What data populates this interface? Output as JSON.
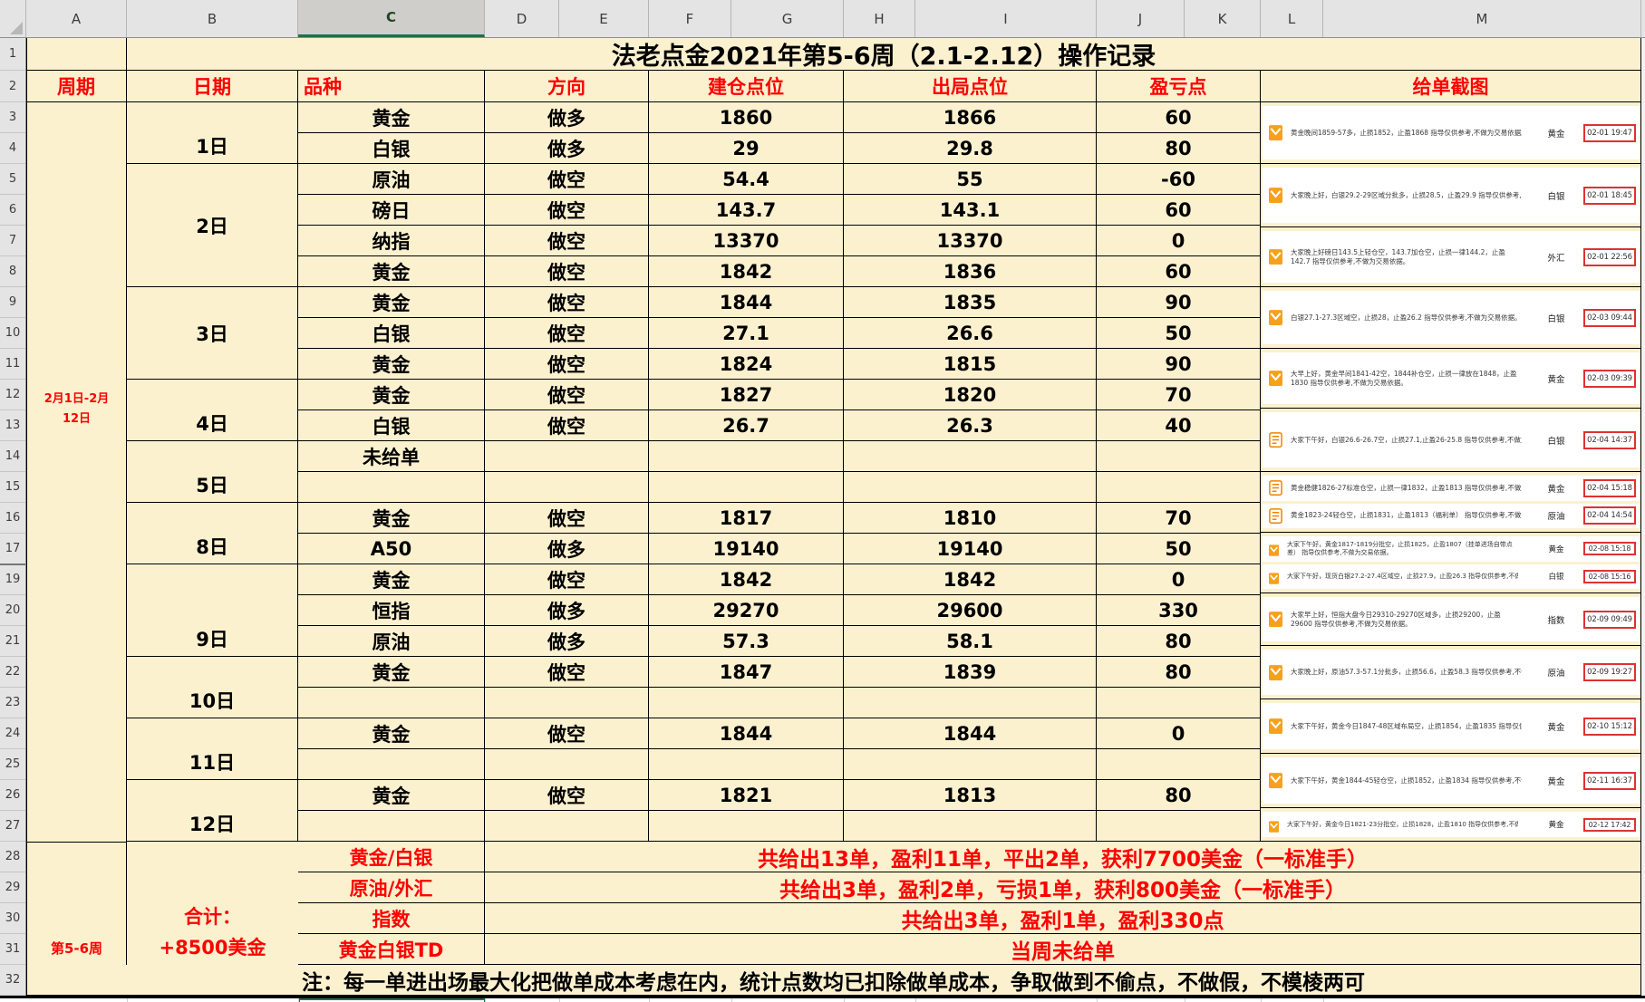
{
  "grid": {
    "column_letters": [
      "A",
      "B",
      "C",
      "D",
      "E",
      "F",
      "G",
      "H",
      "I",
      "J",
      "K",
      "L",
      "M"
    ],
    "selected_column_letter": "C",
    "row_numbers": [
      1,
      2,
      3,
      4,
      5,
      6,
      7,
      8,
      9,
      10,
      11,
      12,
      13,
      14,
      15,
      16,
      17,
      19,
      20,
      21,
      22,
      23,
      24,
      25,
      26,
      27,
      28,
      29,
      30,
      31,
      32
    ],
    "title": "法老点金2021年第5-6周（2.1-2.12）操作记录",
    "headers": {
      "cycle": "周期",
      "date": "日期",
      "variety": "品种",
      "direction": "方向",
      "entry": "建仓点位",
      "exit": "出局点位",
      "pl": "盈亏点",
      "screenshot": "给单截图"
    },
    "cycle_cell": {
      "line1": "2月1日-2月",
      "line2": "12日"
    },
    "week_cell": "第5-6周",
    "total_cell": {
      "line1": "合计：",
      "line2": "+8500美金"
    },
    "note": "注：每一单进出场最大化把做单成本考虑在内，统计点数均已扣除做单成本，争取做到不偷点，不做假，不模棱两可"
  },
  "day_groups": [
    {
      "day": "1日",
      "align": "end",
      "rows": [
        {
          "variety": "黄金",
          "direction": "做多",
          "entry": "1860",
          "exit": "1866",
          "pl": "60"
        },
        {
          "variety": "白银",
          "direction": "做多",
          "entry": "29",
          "exit": "29.8",
          "pl": "80"
        }
      ]
    },
    {
      "day": "2日",
      "align": "center",
      "rows": [
        {
          "variety": "原油",
          "direction": "做空",
          "entry": "54.4",
          "exit": "55",
          "pl": "-60"
        },
        {
          "variety": "磅日",
          "direction": "做空",
          "entry": "143.7",
          "exit": "143.1",
          "pl": "60"
        },
        {
          "variety": "纳指",
          "direction": "做空",
          "entry": "13370",
          "exit": "13370",
          "pl": "0"
        },
        {
          "variety": "黄金",
          "direction": "做空",
          "entry": "1842",
          "exit": "1836",
          "pl": "60"
        }
      ]
    },
    {
      "day": "3日",
      "align": "center",
      "rows": [
        {
          "variety": "黄金",
          "direction": "做空",
          "entry": "1844",
          "exit": "1835",
          "pl": "90"
        },
        {
          "variety": "白银",
          "direction": "做空",
          "entry": "27.1",
          "exit": "26.6",
          "pl": "50"
        },
        {
          "variety": "黄金",
          "direction": "做空",
          "entry": "1824",
          "exit": "1815",
          "pl": "90"
        }
      ]
    },
    {
      "day": "4日",
      "align": "end",
      "rows": [
        {
          "variety": "黄金",
          "direction": "做空",
          "entry": "1827",
          "exit": "1820",
          "pl": "70"
        },
        {
          "variety": "白银",
          "direction": "做空",
          "entry": "26.7",
          "exit": "26.3",
          "pl": "40"
        }
      ]
    },
    {
      "day": "5日",
      "align": "end",
      "rows": [
        {
          "variety": "未给单",
          "direction": "",
          "entry": "",
          "exit": "",
          "pl": ""
        },
        {
          "variety": "",
          "direction": "",
          "entry": "",
          "exit": "",
          "pl": ""
        }
      ]
    },
    {
      "day": "8日",
      "align": "end",
      "rows": [
        {
          "variety": "黄金",
          "direction": "做空",
          "entry": "1817",
          "exit": "1810",
          "pl": "70"
        },
        {
          "variety": "A50",
          "direction": "做多",
          "entry": "19140",
          "exit": "19140",
          "pl": "50"
        }
      ]
    },
    {
      "day": "9日",
      "align": "end",
      "rows": [
        {
          "variety": "黄金",
          "direction": "做空",
          "entry": "1842",
          "exit": "1842",
          "pl": "0"
        },
        {
          "variety": "恒指",
          "direction": "做多",
          "entry": "29270",
          "exit": "29600",
          "pl": "330"
        },
        {
          "variety": "原油",
          "direction": "做多",
          "entry": "57.3",
          "exit": "58.1",
          "pl": "80"
        }
      ]
    },
    {
      "day": "10日",
      "align": "end",
      "rows": [
        {
          "variety": "黄金",
          "direction": "做空",
          "entry": "1847",
          "exit": "1839",
          "pl": "80"
        },
        {
          "variety": "",
          "direction": "",
          "entry": "",
          "exit": "",
          "pl": ""
        }
      ]
    },
    {
      "day": "11日",
      "align": "end",
      "rows": [
        {
          "variety": "黄金",
          "direction": "做空",
          "entry": "1844",
          "exit": "1844",
          "pl": "0"
        },
        {
          "variety": "",
          "direction": "",
          "entry": "",
          "exit": "",
          "pl": ""
        }
      ]
    },
    {
      "day": "12日",
      "align": "end",
      "rows": [
        {
          "variety": "黄金",
          "direction": "做空",
          "entry": "1821",
          "exit": "1813",
          "pl": "80"
        },
        {
          "variety": "",
          "direction": "",
          "entry": "",
          "exit": "",
          "pl": ""
        }
      ]
    }
  ],
  "summary_rows": [
    {
      "category": "黄金/白银",
      "result": "共给出13单，盈利11单，平出2单，获利7700美金（一标准手）"
    },
    {
      "category": "原油/外汇",
      "result": "共给出3单，盈利2单，亏损1单，获利800美金（一标准手）"
    },
    {
      "category": "指数",
      "result": "共给出3单，盈利1单，盈利330点"
    },
    {
      "category": "黄金白银TD",
      "result": "当周未给单"
    }
  ],
  "screenshots": [
    {
      "icon": "envelope",
      "small": false,
      "lines": 1,
      "text": "黄金晚间1859-57多，止损1852，止盈1868 指导仅供参考,不做为交易依据。",
      "category": "黄金",
      "time": "02-01 19:47"
    },
    {
      "icon": "envelope",
      "small": false,
      "lines": 1,
      "text": "大家晚上好，白银29.2-29区域分批多，止损28.5，止盈29.9 指导仅供参考,不做为交易依据。",
      "category": "白银",
      "time": "02-01 18:45"
    },
    {
      "icon": "envelope",
      "small": false,
      "lines": 2,
      "text": "大家晚上好磅日143.5上轻仓空，143.7加仓空，止损一律144.2，止盈142.7 指导仅供参考,不做为交易依据。",
      "category": "外汇",
      "time": "02-01 22:56"
    },
    {
      "icon": "envelope",
      "small": false,
      "lines": 1,
      "text": "白银27.1-27.3区域空，止损28，止盈26.2 指导仅供参考,不做为交易依据。",
      "category": "白银",
      "time": "02-03 09:44"
    },
    {
      "icon": "envelope",
      "small": false,
      "lines": 2,
      "text": "大早上好，黄金早间1841-42空，1844补仓空，止损一律放在1848，止盈1830 指导仅供参考,不做为交易依据。",
      "category": "黄金",
      "time": "02-03 09:39"
    },
    {
      "icon": "doc",
      "small": false,
      "lines": 1,
      "text": "大家下午好，白银26.6-26.7空，止损27.1,止盈26-25.8 指导仅供参考,不做为交易依据。",
      "category": "白银",
      "time": "02-04 14:37"
    },
    {
      "icon": "doc",
      "small": false,
      "lines": 1,
      "text": "黄金稳健1826-27标准仓空，止损一律1832，止盈1813 指导仅供参考,不做为交易依据。",
      "category": "黄金",
      "time": "02-04 15:18"
    },
    {
      "icon": "doc",
      "small": false,
      "lines": 1,
      "text": "黄金1823-24轻仓空，止损1831，止盈1813（福利单） 指导仅供参考,不做为交易依据。",
      "category": "原油",
      "time": "02-04 14:54"
    },
    {
      "icon": "envelope",
      "small": true,
      "lines": 2,
      "text": "大家下午好，黄金1817-1819分批空，止损1825，止盈1807（挂单进场自带点差） 指导仅供参考,不做为交易依据。",
      "category": "黄金",
      "time": "02-08 15:18"
    },
    {
      "icon": "envelope",
      "small": true,
      "lines": 1,
      "text": "大家下午好，现货白银27.2-27.4区域空，止损27.9，止盈26.3 指导仅供参考,不做为交易依据。",
      "category": "白银",
      "time": "02-08 15:16"
    },
    {
      "icon": "envelope",
      "small": false,
      "lines": 2,
      "text": "大家早上好，恒指大盘今日29310-29270区域多，止损29200，止盈29600 指导仅供参考,不做为交易依据。",
      "category": "指数",
      "time": "02-09 09:49"
    },
    {
      "icon": "envelope",
      "small": false,
      "lines": 1,
      "text": "大家晚上好，原油57.3-57.1分批多，止损56.6，止盈58.3 指导仅供参考,不做为交易依据。",
      "category": "原油",
      "time": "02-09 19:27"
    },
    {
      "icon": "envelope",
      "small": false,
      "lines": 1,
      "text": "大家下午好，黄金今日1847-48区域布局空，止损1854，止盈1835 指导仅供参考,不做为交易依据。",
      "category": "黄金",
      "time": "02-10 15:12"
    },
    {
      "icon": "envelope",
      "small": false,
      "lines": 1,
      "text": "大家下午好，黄金1844-45轻仓空，止损1852，止盈1834 指导仅供参考,不做为交易依据。",
      "category": "黄金",
      "time": "02-11 16:37"
    },
    {
      "icon": "envelope",
      "small": true,
      "lines": 1,
      "text": "大家下午好，黄金今日1821-23分批空，止损1828，止盈1810 指导仅供参考,不做为交易依据。",
      "category": "黄金",
      "time": "02-12 17:42"
    }
  ],
  "colors": {
    "sheet_fill": "#fcf1cf",
    "accent_red": "#fe0000",
    "time_box_red": "#e03131",
    "icon_orange": "#f7a11a",
    "selection_green": "#217346"
  }
}
